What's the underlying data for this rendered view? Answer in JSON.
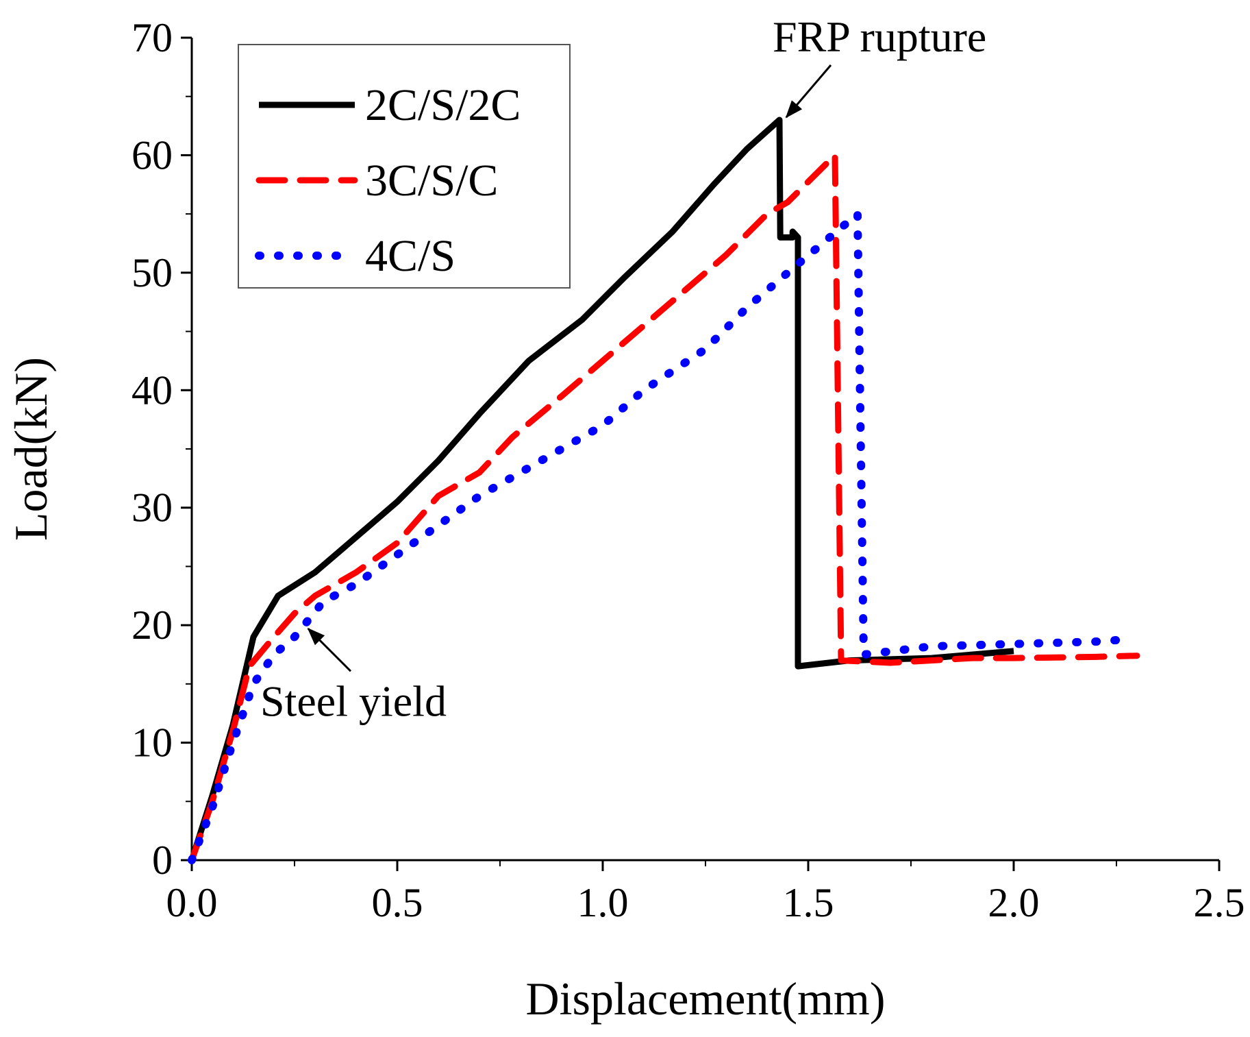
{
  "chart_data": {
    "type": "line",
    "xlabel": "Displacement(mm)",
    "ylabel": "Load(kN)",
    "xlim": [
      0,
      2.5
    ],
    "ylim": [
      0,
      70
    ],
    "x_ticks": [
      "0.0",
      "0.5",
      "1.0",
      "1.5",
      "2.0",
      "2.5"
    ],
    "x_tick_values": [
      0,
      0.5,
      1.0,
      1.5,
      2.0,
      2.5
    ],
    "y_ticks": [
      "0",
      "10",
      "20",
      "30",
      "40",
      "50",
      "60",
      "70"
    ],
    "y_tick_values": [
      0,
      10,
      20,
      30,
      40,
      50,
      60,
      70
    ],
    "grid": false,
    "legend_position": "top-left",
    "series": [
      {
        "name": "2C/S/2C",
        "color": "#000000",
        "style": "solid",
        "points": [
          [
            0,
            0
          ],
          [
            0.05,
            5.5
          ],
          [
            0.1,
            11.5
          ],
          [
            0.15,
            19
          ],
          [
            0.21,
            22.5
          ],
          [
            0.3,
            24.5
          ],
          [
            0.4,
            27.5
          ],
          [
            0.5,
            30.5
          ],
          [
            0.6,
            34
          ],
          [
            0.7,
            38
          ],
          [
            0.82,
            42.5
          ],
          [
            0.95,
            46
          ],
          [
            1.05,
            49.5
          ],
          [
            1.17,
            53.5
          ],
          [
            1.27,
            57.5
          ],
          [
            1.35,
            60.5
          ],
          [
            1.43,
            63
          ],
          [
            1.432,
            53
          ],
          [
            1.462,
            53
          ],
          [
            1.462,
            53.5
          ],
          [
            1.475,
            53
          ],
          [
            1.475,
            16.5
          ],
          [
            1.6,
            17
          ],
          [
            1.8,
            17.2
          ],
          [
            2.0,
            17.8
          ]
        ]
      },
      {
        "name": "3C/S/C",
        "color": "#ff0000",
        "style": "dashed",
        "points": [
          [
            0,
            0
          ],
          [
            0.05,
            5
          ],
          [
            0.1,
            11
          ],
          [
            0.14,
            16.5
          ],
          [
            0.2,
            19
          ],
          [
            0.25,
            21
          ],
          [
            0.3,
            22.5
          ],
          [
            0.4,
            24.5
          ],
          [
            0.5,
            27
          ],
          [
            0.6,
            31
          ],
          [
            0.7,
            33
          ],
          [
            0.78,
            36
          ],
          [
            0.9,
            39.5
          ],
          [
            1.0,
            42.5
          ],
          [
            1.1,
            45.5
          ],
          [
            1.2,
            48.5
          ],
          [
            1.3,
            51.5
          ],
          [
            1.4,
            55
          ],
          [
            1.45,
            56
          ],
          [
            1.565,
            60
          ],
          [
            1.58,
            17
          ],
          [
            1.7,
            16.8
          ],
          [
            1.9,
            17.2
          ],
          [
            2.0,
            17.2
          ],
          [
            2.2,
            17.3
          ],
          [
            2.3,
            17.4
          ]
        ]
      },
      {
        "name": "4C/S",
        "color": "#0000ff",
        "style": "dotted",
        "points": [
          [
            0,
            0
          ],
          [
            0.05,
            4.5
          ],
          [
            0.1,
            10
          ],
          [
            0.15,
            15
          ],
          [
            0.2,
            17.5
          ],
          [
            0.25,
            19
          ],
          [
            0.32,
            22
          ],
          [
            0.4,
            23.5
          ],
          [
            0.5,
            26
          ],
          [
            0.6,
            28.5
          ],
          [
            0.7,
            31
          ],
          [
            0.85,
            34
          ],
          [
            1.0,
            37
          ],
          [
            1.1,
            40
          ],
          [
            1.25,
            43.5
          ],
          [
            1.35,
            47
          ],
          [
            1.45,
            50
          ],
          [
            1.62,
            55
          ],
          [
            1.635,
            17.5
          ],
          [
            1.8,
            18.2
          ],
          [
            2.0,
            18.4
          ],
          [
            2.2,
            18.6
          ],
          [
            2.28,
            18.8
          ]
        ]
      }
    ],
    "annotations": [
      {
        "text": "FRP rupture",
        "x": 1.43,
        "y": 63
      },
      {
        "text": "Steel yield",
        "x": 0.3,
        "y": 19
      }
    ]
  }
}
